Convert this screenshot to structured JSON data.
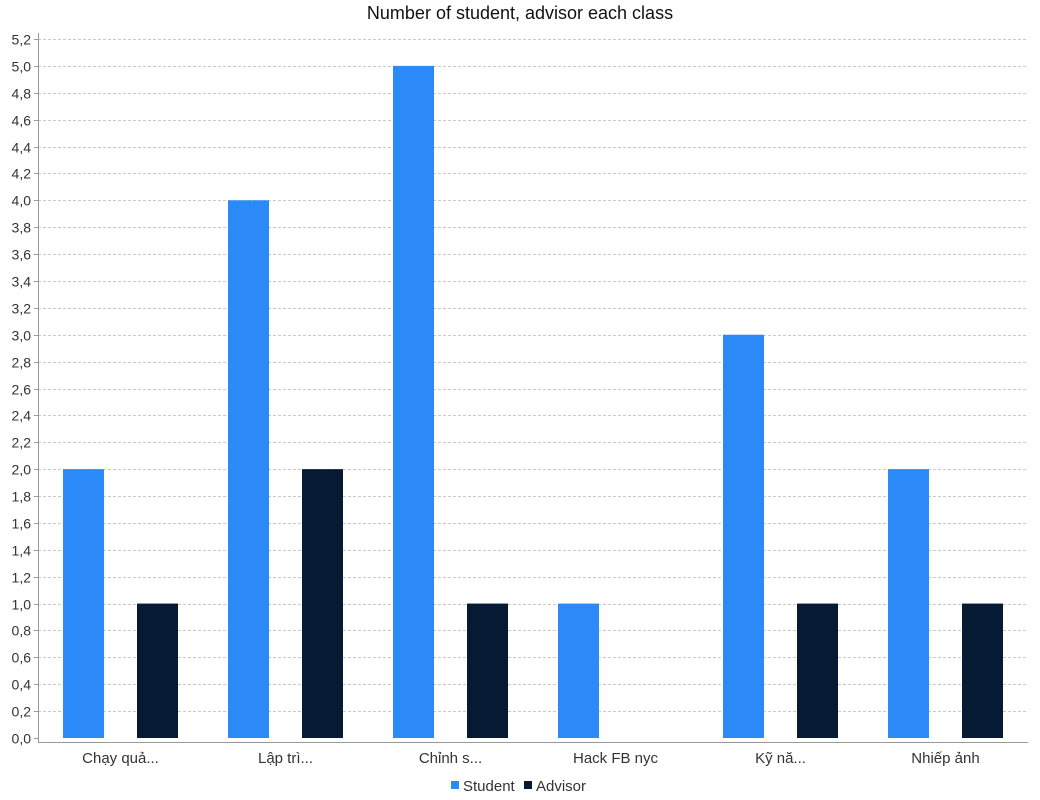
{
  "chart_data": {
    "type": "bar",
    "title": "Number of student, advisor each class",
    "xlabel": "",
    "ylabel": "",
    "categories": [
      "Chạy quả...",
      "Lập trì...",
      "Chỉnh s...",
      "Hack FB nyc",
      "Kỹ nă...",
      "Nhiếp ảnh"
    ],
    "series": [
      {
        "name": "Student",
        "color": "#2b8af7",
        "values": [
          2,
          4,
          5,
          1,
          3,
          2
        ]
      },
      {
        "name": "Advisor",
        "color": "#061a33",
        "values": [
          1,
          2,
          1,
          0,
          1,
          1
        ]
      }
    ],
    "ylim": [
      0,
      5.2
    ],
    "ytick_step": 0.2,
    "ytick_labels": [
      "0,0",
      "0,2",
      "0,4",
      "0,6",
      "0,8",
      "1,0",
      "1,2",
      "1,4",
      "1,6",
      "1,8",
      "2,0",
      "2,2",
      "2,4",
      "2,6",
      "2,8",
      "3,0",
      "3,2",
      "3,4",
      "3,6",
      "3,8",
      "4,0",
      "4,2",
      "4,4",
      "4,6",
      "4,8",
      "5,0",
      "5,2"
    ],
    "grid": true,
    "legend_position": "bottom"
  }
}
